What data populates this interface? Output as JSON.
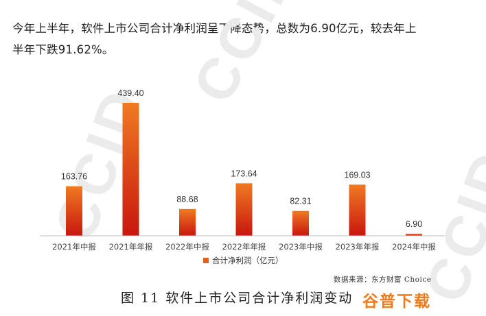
{
  "intro": {
    "line1": "今年上半年，软件上市公司合计净利润呈下降态势，总数为6.90亿元，较去年上",
    "line2": "半年下跌91.62%。"
  },
  "watermark": "CCID",
  "chart_data": {
    "type": "bar",
    "categories": [
      "2021年中报",
      "2021年年报",
      "2022年中报",
      "2022年年报",
      "2023年中报",
      "2023年年报",
      "2024年中报"
    ],
    "series": [
      {
        "name": "合计净利润（亿元）",
        "values": [
          163.76,
          439.4,
          88.68,
          173.64,
          82.31,
          169.03,
          6.9
        ]
      }
    ],
    "data_labels": [
      "163.76",
      "439.40",
      "88.68",
      "173.64",
      "82.31",
      "169.03",
      "6.90"
    ],
    "ylim": [
      0,
      439.4
    ],
    "xlabel": "",
    "ylabel": "",
    "legend_position": "bottom",
    "grid": false,
    "colors": {
      "bar_top": "#f07a22",
      "bar_bottom": "#c8160e",
      "axis": "#bfbfbf"
    }
  },
  "legend": {
    "label": "合计净利润（亿元）"
  },
  "source": "数据来源：东方财富 Choice",
  "caption": "图 11 软件上市公司合计净利润变动",
  "logo": {
    "text": "谷普下载"
  }
}
